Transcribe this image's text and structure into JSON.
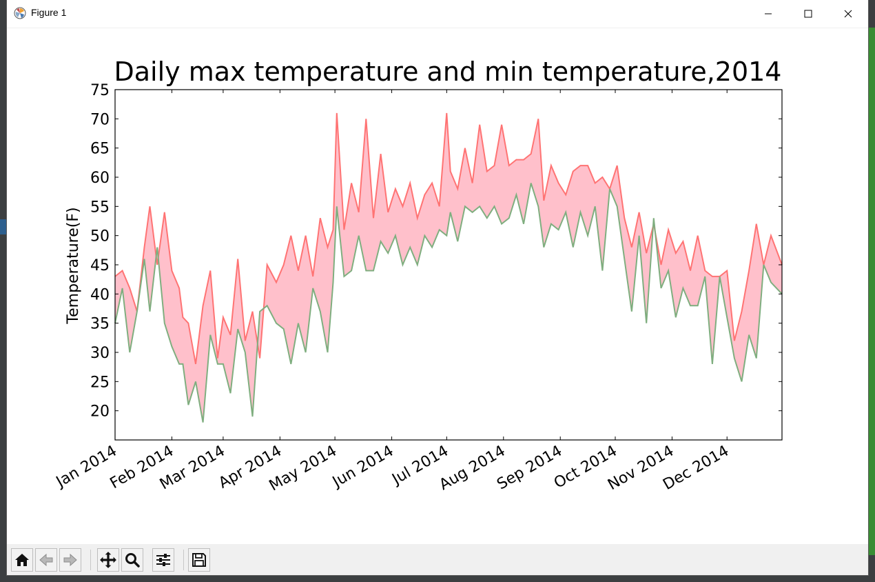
{
  "window": {
    "title": "Figure 1",
    "controls": {
      "minimize_icon": "minimize-icon",
      "maximize_icon": "maximize-icon",
      "close_icon": "close-icon"
    }
  },
  "toolbar": {
    "buttons": [
      {
        "name": "home-button",
        "icon": "home-icon"
      },
      {
        "name": "back-button",
        "icon": "arrow-left-icon"
      },
      {
        "name": "forward-button",
        "icon": "arrow-right-icon"
      },
      {
        "name": "pan-button",
        "icon": "move-icon"
      },
      {
        "name": "zoom-button",
        "icon": "magnifier-icon"
      },
      {
        "name": "configure-subplots-button",
        "icon": "sliders-icon"
      },
      {
        "name": "save-button",
        "icon": "floppy-disk-icon"
      }
    ]
  },
  "chart_data": {
    "type": "area",
    "title": "Daily max temperature and min temperature,2014",
    "xlabel": "",
    "ylabel": "Temperature(F)",
    "ylim": [
      15,
      75
    ],
    "yticks": [
      20,
      25,
      30,
      35,
      40,
      45,
      50,
      55,
      60,
      65,
      70,
      75
    ],
    "xlim": [
      "2014-01-01",
      "2014-12-31"
    ],
    "xticks": [
      {
        "date": "2014-01-01",
        "label": "Jan 2014"
      },
      {
        "date": "2014-02-01",
        "label": "Feb 2014"
      },
      {
        "date": "2014-03-01",
        "label": "Mar 2014"
      },
      {
        "date": "2014-04-01",
        "label": "Apr 2014"
      },
      {
        "date": "2014-05-01",
        "label": "May 2014"
      },
      {
        "date": "2014-06-01",
        "label": "Jun 2014"
      },
      {
        "date": "2014-07-01",
        "label": "Jul 2014"
      },
      {
        "date": "2014-08-01",
        "label": "Aug 2014"
      },
      {
        "date": "2014-09-01",
        "label": "Sep 2014"
      },
      {
        "date": "2014-10-01",
        "label": "Oct 2014"
      },
      {
        "date": "2014-11-01",
        "label": "Nov 2014"
      },
      {
        "date": "2014-12-01",
        "label": "Dec 2014"
      }
    ],
    "fill_color": "#ffc0cb",
    "grid": false,
    "legend": "none",
    "series": [
      {
        "color": "#ff7373",
        "x": [
          "2014-01-01",
          "2014-01-05",
          "2014-01-09",
          "2014-01-13",
          "2014-01-17",
          "2014-01-20",
          "2014-01-24",
          "2014-01-28",
          "2014-02-01",
          "2014-02-05",
          "2014-02-07",
          "2014-02-10",
          "2014-02-14",
          "2014-02-18",
          "2014-02-22",
          "2014-02-26",
          "2014-03-01",
          "2014-03-05",
          "2014-03-09",
          "2014-03-13",
          "2014-03-17",
          "2014-03-21",
          "2014-03-25",
          "2014-03-30",
          "2014-04-03",
          "2014-04-07",
          "2014-04-11",
          "2014-04-15",
          "2014-04-19",
          "2014-04-23",
          "2014-04-27",
          "2014-04-30",
          "2014-05-02",
          "2014-05-06",
          "2014-05-10",
          "2014-05-14",
          "2014-05-18",
          "2014-05-22",
          "2014-05-26",
          "2014-05-30",
          "2014-06-03",
          "2014-06-07",
          "2014-06-11",
          "2014-06-15",
          "2014-06-19",
          "2014-06-23",
          "2014-06-27",
          "2014-07-01",
          "2014-07-03",
          "2014-07-07",
          "2014-07-11",
          "2014-07-15",
          "2014-07-19",
          "2014-07-23",
          "2014-07-27",
          "2014-07-31",
          "2014-08-04",
          "2014-08-08",
          "2014-08-12",
          "2014-08-16",
          "2014-08-20",
          "2014-08-23",
          "2014-08-27",
          "2014-08-31",
          "2014-09-04",
          "2014-09-08",
          "2014-09-12",
          "2014-09-16",
          "2014-09-20",
          "2014-09-24",
          "2014-09-28",
          "2014-10-02",
          "2014-10-06",
          "2014-10-10",
          "2014-10-14",
          "2014-10-18",
          "2014-10-22",
          "2014-10-26",
          "2014-10-30",
          "2014-11-03",
          "2014-11-07",
          "2014-11-11",
          "2014-11-15",
          "2014-11-19",
          "2014-11-23",
          "2014-11-27",
          "2014-12-01",
          "2014-12-05",
          "2014-12-09",
          "2014-12-13",
          "2014-12-17",
          "2014-12-21",
          "2014-12-25",
          "2014-12-31"
        ],
        "values": [
          43,
          44,
          41,
          37,
          48,
          55,
          45,
          54,
          44,
          41,
          36,
          35,
          28,
          38,
          44,
          29,
          36,
          33,
          46,
          32,
          37,
          29,
          45,
          42,
          45,
          50,
          44,
          50,
          43,
          53,
          48,
          51,
          71,
          51,
          59,
          54,
          70,
          53,
          64,
          54,
          58,
          55,
          59,
          53,
          57,
          59,
          55,
          71,
          61,
          58,
          65,
          59,
          69,
          61,
          62,
          69,
          62,
          63,
          63,
          64,
          70,
          56,
          62,
          59,
          57,
          61,
          62,
          62,
          59,
          60,
          58,
          62,
          53,
          48,
          54,
          47,
          52,
          45,
          51,
          47,
          49,
          44,
          50,
          44,
          43,
          43,
          44,
          32,
          37,
          44,
          52,
          45,
          50,
          45
        ]
      },
      {
        "color": "#7fae7f",
        "x": [
          "2014-01-01",
          "2014-01-05",
          "2014-01-09",
          "2014-01-13",
          "2014-01-17",
          "2014-01-20",
          "2014-01-24",
          "2014-01-28",
          "2014-02-01",
          "2014-02-05",
          "2014-02-07",
          "2014-02-10",
          "2014-02-14",
          "2014-02-18",
          "2014-02-22",
          "2014-02-26",
          "2014-03-01",
          "2014-03-05",
          "2014-03-09",
          "2014-03-13",
          "2014-03-17",
          "2014-03-21",
          "2014-03-25",
          "2014-03-30",
          "2014-04-03",
          "2014-04-07",
          "2014-04-11",
          "2014-04-15",
          "2014-04-19",
          "2014-04-23",
          "2014-04-27",
          "2014-04-30",
          "2014-05-02",
          "2014-05-06",
          "2014-05-10",
          "2014-05-14",
          "2014-05-18",
          "2014-05-22",
          "2014-05-26",
          "2014-05-30",
          "2014-06-03",
          "2014-06-07",
          "2014-06-11",
          "2014-06-15",
          "2014-06-19",
          "2014-06-23",
          "2014-06-27",
          "2014-07-01",
          "2014-07-03",
          "2014-07-07",
          "2014-07-11",
          "2014-07-15",
          "2014-07-19",
          "2014-07-23",
          "2014-07-27",
          "2014-07-31",
          "2014-08-04",
          "2014-08-08",
          "2014-08-12",
          "2014-08-16",
          "2014-08-20",
          "2014-08-23",
          "2014-08-27",
          "2014-08-31",
          "2014-09-04",
          "2014-09-08",
          "2014-09-12",
          "2014-09-16",
          "2014-09-20",
          "2014-09-24",
          "2014-09-28",
          "2014-10-02",
          "2014-10-06",
          "2014-10-10",
          "2014-10-14",
          "2014-10-18",
          "2014-10-22",
          "2014-10-26",
          "2014-10-30",
          "2014-11-03",
          "2014-11-07",
          "2014-11-11",
          "2014-11-15",
          "2014-11-19",
          "2014-11-23",
          "2014-11-27",
          "2014-12-01",
          "2014-12-05",
          "2014-12-09",
          "2014-12-13",
          "2014-12-17",
          "2014-12-21",
          "2014-12-25",
          "2014-12-31"
        ],
        "values": [
          35,
          41,
          30,
          37,
          46,
          37,
          48,
          35,
          31,
          28,
          28,
          21,
          25,
          18,
          33,
          28,
          28,
          23,
          34,
          30,
          19,
          37,
          38,
          35,
          34,
          28,
          35,
          30,
          41,
          37,
          30,
          42,
          55,
          43,
          44,
          50,
          44,
          44,
          49,
          47,
          50,
          45,
          48,
          45,
          50,
          48,
          51,
          50,
          54,
          49,
          55,
          54,
          55,
          53,
          55,
          52,
          53,
          57,
          52,
          59,
          55,
          48,
          52,
          51,
          54,
          48,
          54,
          50,
          55,
          44,
          58,
          55,
          46,
          37,
          50,
          35,
          53,
          41,
          44,
          36,
          41,
          38,
          38,
          43,
          28,
          43,
          36,
          29,
          25,
          33,
          29,
          45,
          42,
          40
        ]
      }
    ]
  }
}
